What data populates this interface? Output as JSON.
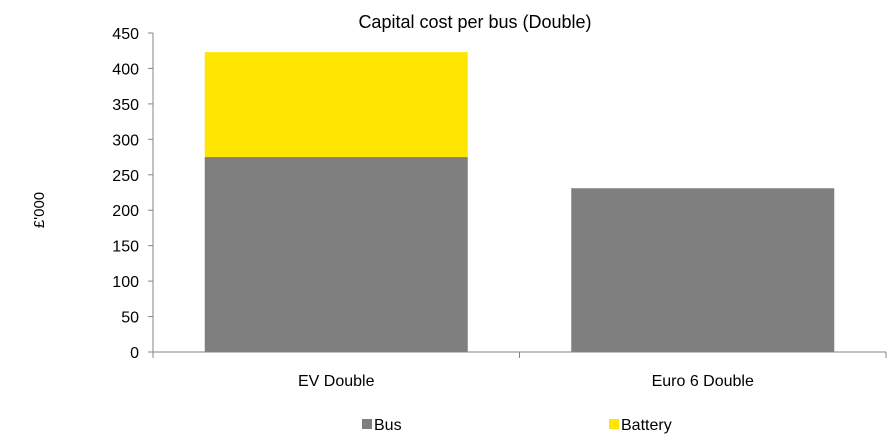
{
  "chart_data": {
    "type": "bar",
    "stacked": true,
    "title": "Capital cost per bus (Double)",
    "xlabel": "",
    "ylabel": "£'000",
    "categories": [
      "EV Double",
      "Euro 6 Double"
    ],
    "series": [
      {
        "name": "Bus",
        "values": [
          275,
          231
        ],
        "color": "#7f7f7f"
      },
      {
        "name": "Battery",
        "values": [
          148,
          0
        ],
        "color": "#ffe600"
      }
    ],
    "ylim": [
      0,
      450
    ],
    "yticks": [
      0,
      50,
      100,
      150,
      200,
      250,
      300,
      350,
      400,
      450
    ],
    "grid": false,
    "legend_position": "bottom"
  }
}
